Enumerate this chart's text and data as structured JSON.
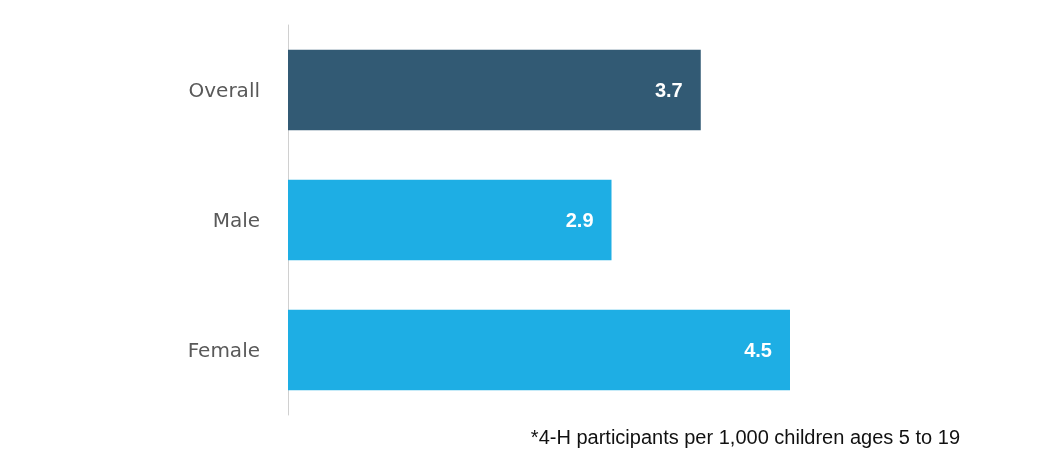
{
  "chart_data": {
    "type": "bar",
    "orientation": "horizontal",
    "categories": [
      "Overall",
      "Male",
      "Female"
    ],
    "values": [
      3.7,
      2.9,
      4.5
    ],
    "colors": [
      "#325a74",
      "#1eaee4",
      "#1eaee4"
    ],
    "data_labels": true,
    "annotations": [
      "*4-H participants per 1,000 children ages 5 to 19"
    ]
  }
}
